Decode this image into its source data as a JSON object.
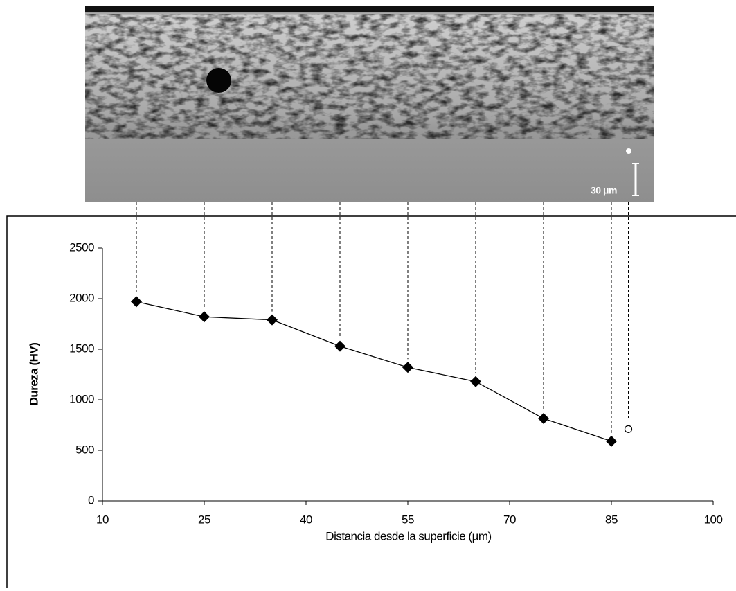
{
  "image": {
    "scale_label": "30 μm"
  },
  "chart_data": {
    "type": "line",
    "xlabel": "Distancia desde la superficie (µm)",
    "ylabel": "Dureza (HV)",
    "xlim": [
      10,
      100
    ],
    "xticks": [
      10,
      25,
      40,
      55,
      70,
      85,
      100
    ],
    "ylim": [
      0,
      2500
    ],
    "yticks": [
      0,
      500,
      1000,
      1500,
      2000,
      2500
    ],
    "grid": false,
    "series": [
      {
        "color": "#000000",
        "marker": "diamond",
        "line": true,
        "x": [
          15,
          25,
          35,
          45,
          55,
          65,
          75,
          85
        ],
        "values": [
          1970,
          1820,
          1790,
          1530,
          1320,
          1180,
          815,
          590
        ]
      },
      {
        "color": "#000000",
        "marker": "open-circle",
        "line": false,
        "x": [
          87.5
        ],
        "values": [
          710
        ]
      }
    ]
  }
}
